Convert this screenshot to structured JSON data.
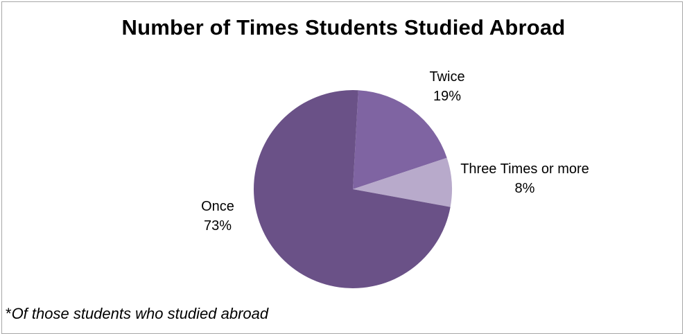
{
  "chart_data": {
    "type": "pie",
    "title": "Number of Times Students Studied Abroad",
    "slices": [
      {
        "label": "Twice",
        "value": 19,
        "display": "19%",
        "color": "#7f64a2"
      },
      {
        "label": "Three Times or more",
        "value": 8,
        "display": "8%",
        "color": "#b8aacb"
      },
      {
        "label": "Once",
        "value": 73,
        "display": "73%",
        "color": "#6a5187"
      }
    ],
    "legend": "none"
  },
  "footnote": {
    "marker": "*",
    "text": "Of those students who studied abroad"
  }
}
